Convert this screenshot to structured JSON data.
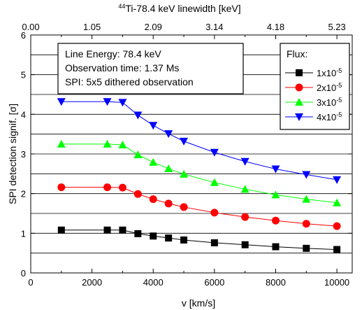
{
  "chart_data": {
    "type": "line",
    "title_parts": {
      "sup": "44",
      "text": "Ti-78.4 keV linewidth [keV]"
    },
    "xlabel": "v [km/s]",
    "ylabel": "SPI detection signif. [σ]",
    "xlim": [
      0,
      10500
    ],
    "ylim": [
      0,
      6
    ],
    "x_ticks": [
      "0",
      "2000",
      "4000",
      "6000",
      "8000",
      "10000"
    ],
    "y_ticks": [
      "0",
      "1",
      "2",
      "3",
      "4",
      "5",
      "6"
    ],
    "top_ticks": [
      "0.00",
      "1.05",
      "2.09",
      "3.14",
      "4.18",
      "5.23"
    ],
    "grid": "horizontal",
    "x": [
      1000,
      2500,
      3000,
      3500,
      4000,
      4500,
      5000,
      6000,
      7000,
      8000,
      9000,
      10000
    ],
    "series": [
      {
        "name": "1x10-5",
        "label_base": "1x10",
        "label_exp": "-5",
        "color": "#000000",
        "marker": "square",
        "values": [
          1.08,
          1.08,
          1.08,
          0.99,
          0.93,
          0.88,
          0.83,
          0.76,
          0.71,
          0.66,
          0.62,
          0.59
        ]
      },
      {
        "name": "2x10-5",
        "label_base": "2x10",
        "label_exp": "-5",
        "color": "#ff0000",
        "marker": "circle",
        "values": [
          2.16,
          2.16,
          2.15,
          1.99,
          1.86,
          1.75,
          1.66,
          1.52,
          1.41,
          1.32,
          1.24,
          1.18
        ]
      },
      {
        "name": "3x10-5",
        "label_base": "3x10",
        "label_exp": "-5",
        "color": "#00ff00",
        "marker": "triangle-up",
        "values": [
          3.25,
          3.25,
          3.23,
          2.98,
          2.79,
          2.63,
          2.49,
          2.28,
          2.11,
          1.97,
          1.86,
          1.77
        ]
      },
      {
        "name": "4x10-5",
        "label_base": "4x10",
        "label_exp": "-5",
        "color": "#0000ff",
        "marker": "triangle-down",
        "values": [
          4.32,
          4.32,
          4.3,
          3.98,
          3.72,
          3.51,
          3.32,
          3.04,
          2.81,
          2.62,
          2.48,
          2.35
        ]
      }
    ],
    "info_box": [
      "Line Energy: 78.4 keV",
      "Observation time: 1.37 Ms",
      "SPI: 5x5 dithered observation"
    ],
    "legend": {
      "title": "Flux:",
      "placement": "top-right"
    }
  }
}
